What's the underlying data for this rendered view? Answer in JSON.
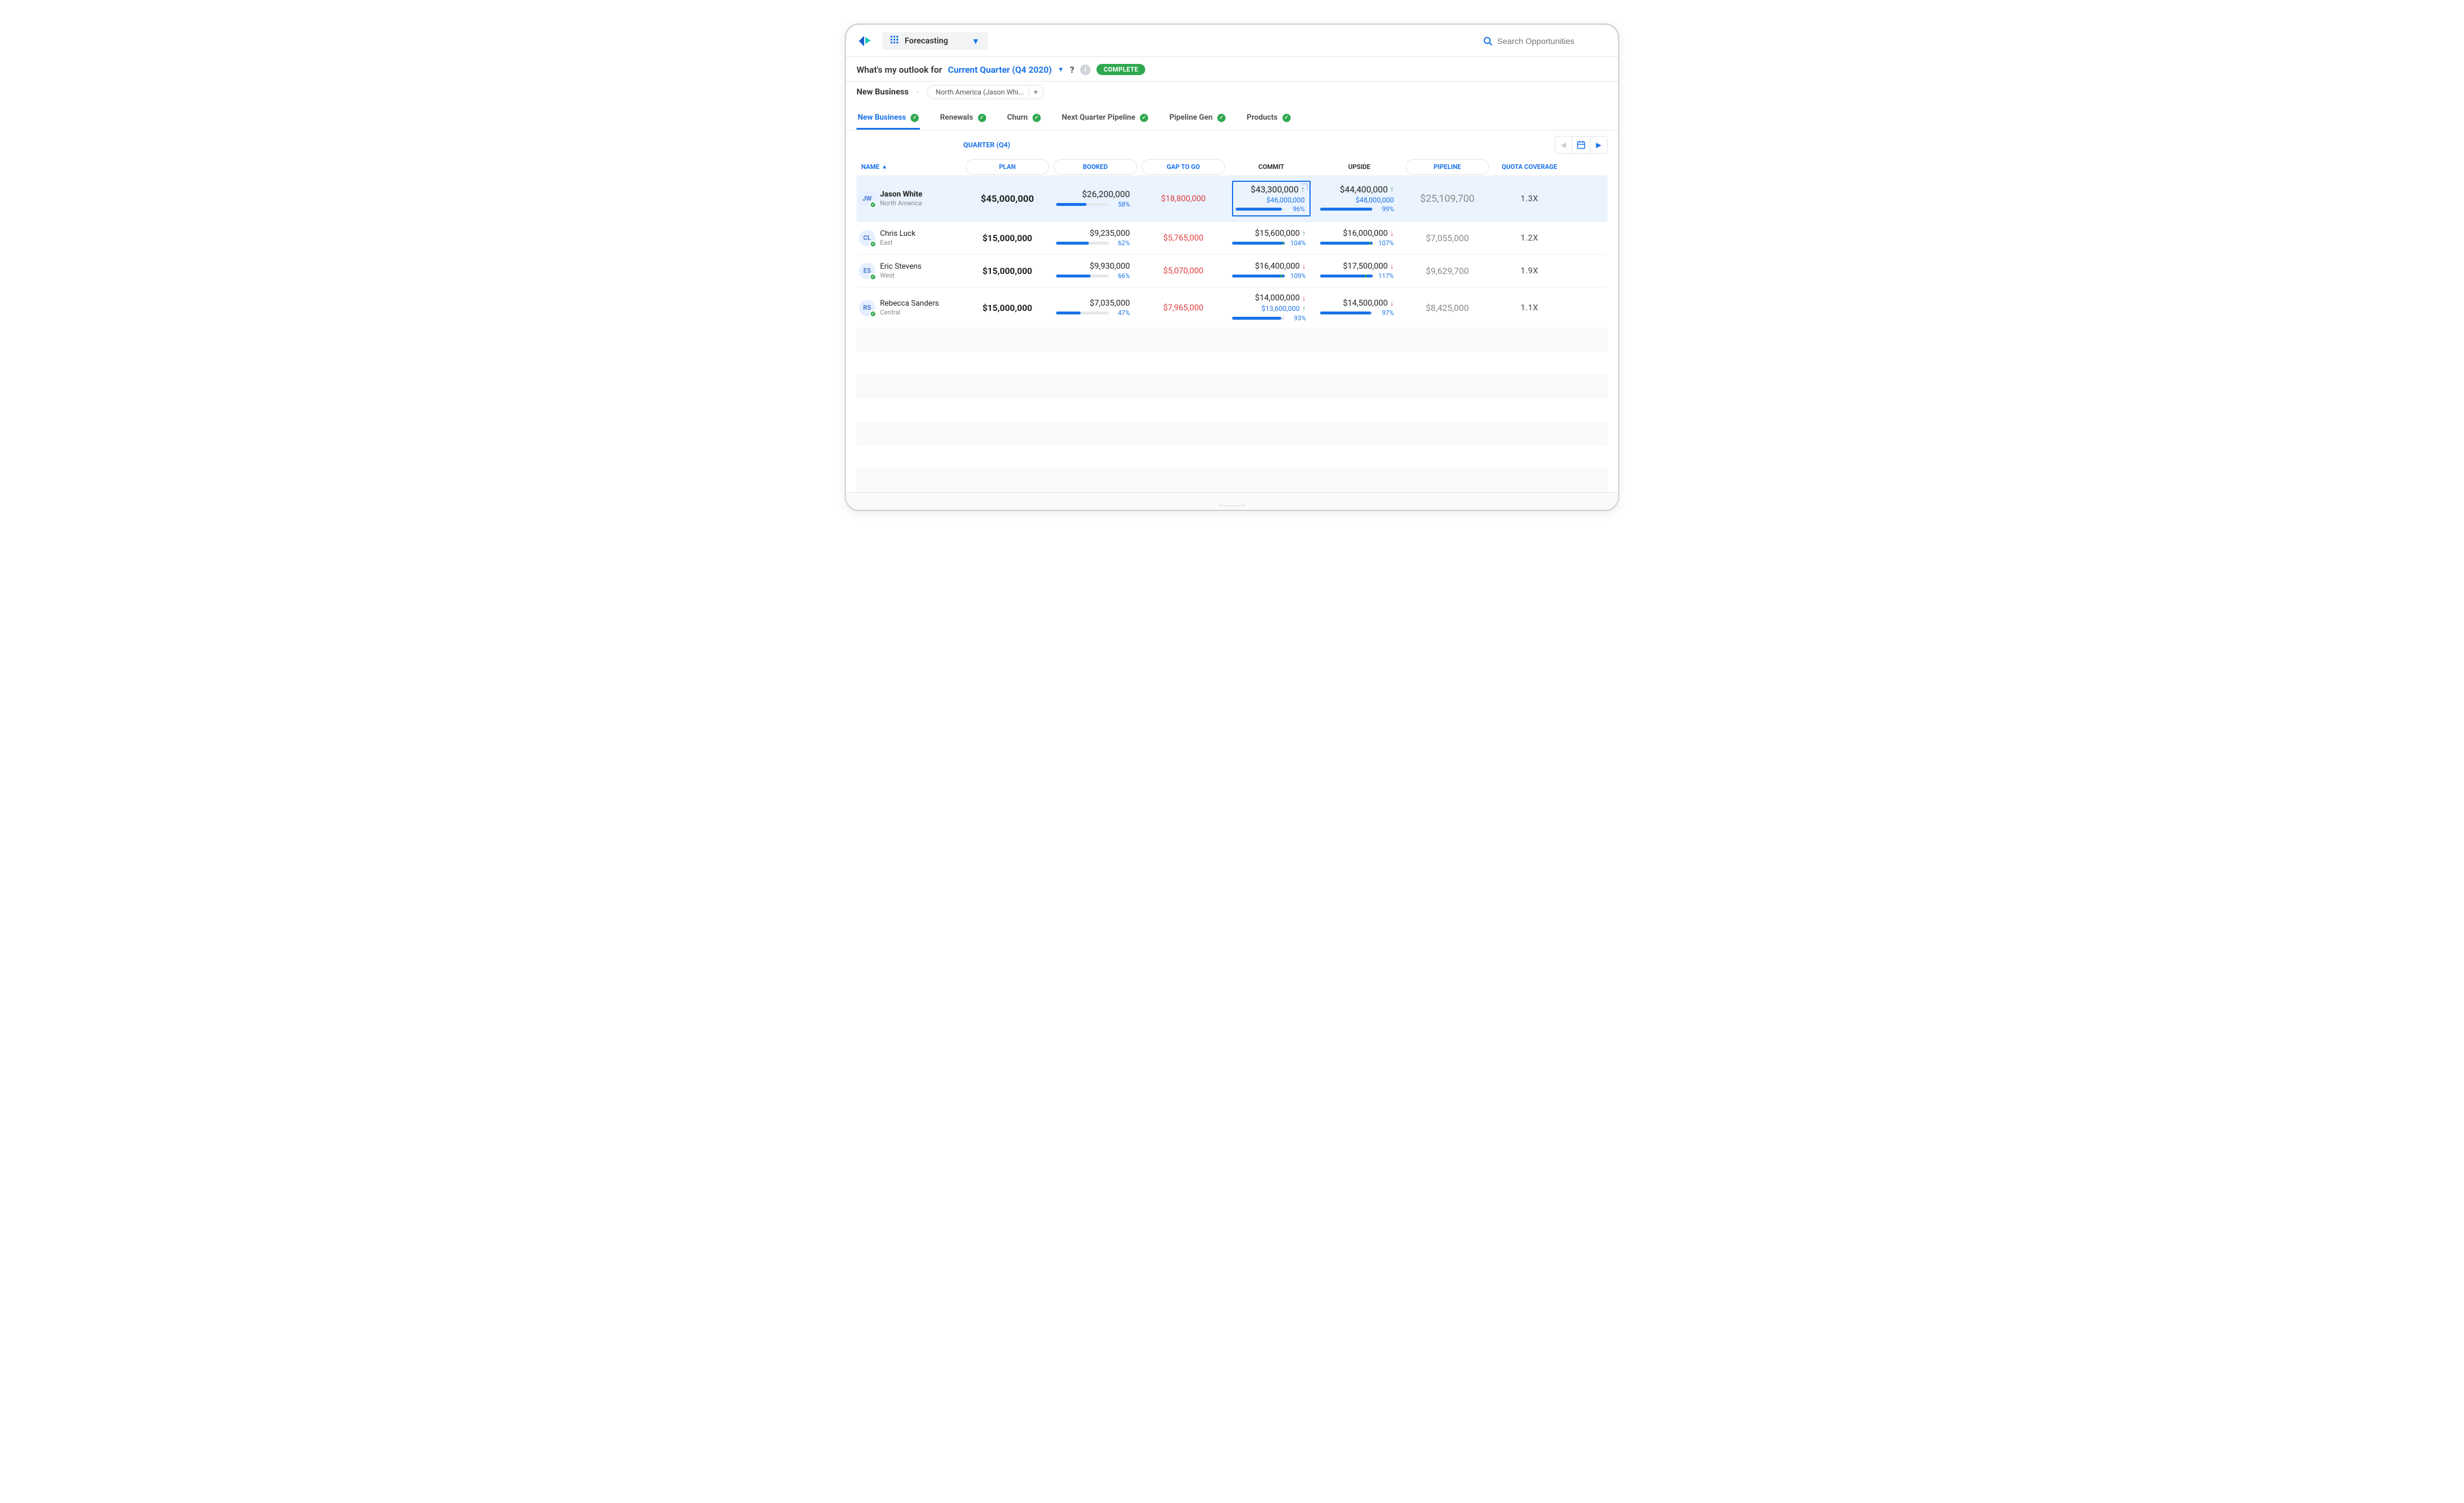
{
  "header": {
    "app_label": "Forecasting",
    "search_placeholder": "Search Opportunities"
  },
  "outlook": {
    "prefix": "What's my outlook for",
    "period_link": "Current Quarter (Q4 2020)",
    "suffix": "?",
    "status_badge": "COMPLETE"
  },
  "filters": {
    "segment": "New Business",
    "region_selected": "North America (Jason Whi..."
  },
  "tabs": [
    {
      "label": "New Business",
      "active": true
    },
    {
      "label": "Renewals",
      "active": false
    },
    {
      "label": "Churn",
      "active": false
    },
    {
      "label": "Next Quarter Pipeline",
      "active": false
    },
    {
      "label": "Pipeline Gen",
      "active": false
    },
    {
      "label": "Products",
      "active": false
    }
  ],
  "period_label": "QUARTER (Q4)",
  "columns": {
    "name": "NAME",
    "plan": "PLAN",
    "booked": "BOOKED",
    "gap": "GAP TO GO",
    "commit": "COMMIT",
    "upside": "UPSIDE",
    "pipeline": "PIPELINE",
    "quota": "QUOTA COVERAGE"
  },
  "rows": [
    {
      "initials": "JW",
      "name": "Jason White",
      "region": "North America",
      "selected": true,
      "plan": "$45,000,000",
      "booked": {
        "value": "$26,200,000",
        "pct": "58%",
        "fill": 58
      },
      "gap": "$18,800,000",
      "commit": {
        "value": "$43,300,000",
        "sub": "$46,000,000",
        "pct": "96%",
        "fill": 96,
        "dir": "up",
        "selected_cell": true
      },
      "upside": {
        "value": "$44,400,000",
        "sub": "$48,000,000",
        "pct": "99%",
        "fill": 99,
        "dir": "up"
      },
      "pipeline": "$25,109,700",
      "quota": "1.3X"
    },
    {
      "initials": "CL",
      "name": "Chris Luck",
      "region": "East",
      "selected": false,
      "plan": "$15,000,000",
      "booked": {
        "value": "$9,235,000",
        "pct": "62%",
        "fill": 62
      },
      "gap": "$5,765,000",
      "commit": {
        "value": "$15,600,000",
        "pct": "104%",
        "fill": 100,
        "mark": 96,
        "dir": "up"
      },
      "upside": {
        "value": "$16,000,000",
        "pct": "107%",
        "fill": 100,
        "mark": 93,
        "dir": "down"
      },
      "pipeline": "$7,055,000",
      "quota": "1.2X"
    },
    {
      "initials": "ES",
      "name": "Eric Stevens",
      "region": "West",
      "selected": false,
      "plan": "$15,000,000",
      "booked": {
        "value": "$9,930,000",
        "pct": "66%",
        "fill": 66
      },
      "gap": "$5,070,000",
      "commit": {
        "value": "$16,400,000",
        "pct": "109%",
        "fill": 100,
        "mark": 92,
        "dir": "down"
      },
      "upside": {
        "value": "$17,500,000",
        "pct": "117%",
        "fill": 100,
        "mark": 86,
        "dir": "down"
      },
      "pipeline": "$9,629,700",
      "quota": "1.9X"
    },
    {
      "initials": "RS",
      "name": "Rebecca Sanders",
      "region": "Central",
      "selected": false,
      "plan": "$15,000,000",
      "booked": {
        "value": "$7,035,000",
        "pct": "47%",
        "fill": 47
      },
      "gap": "$7,965,000",
      "commit": {
        "value": "$14,000,000",
        "sub": "$13,600,000",
        "pct": "93%",
        "fill": 93,
        "dir": "down",
        "sub_dir": "up"
      },
      "upside": {
        "value": "$14,500,000",
        "pct": "97%",
        "fill": 97,
        "dir": "down"
      },
      "pipeline": "$8,425,000",
      "quota": "1.1X"
    }
  ],
  "colors": {
    "accent": "#1a73e8",
    "success": "#2fa84f",
    "danger": "#e03b3b",
    "muted": "#888888",
    "row_selected_bg": "#eaf3fe",
    "border": "#e5e7eb",
    "bar_bg": "#e5e7eb"
  }
}
